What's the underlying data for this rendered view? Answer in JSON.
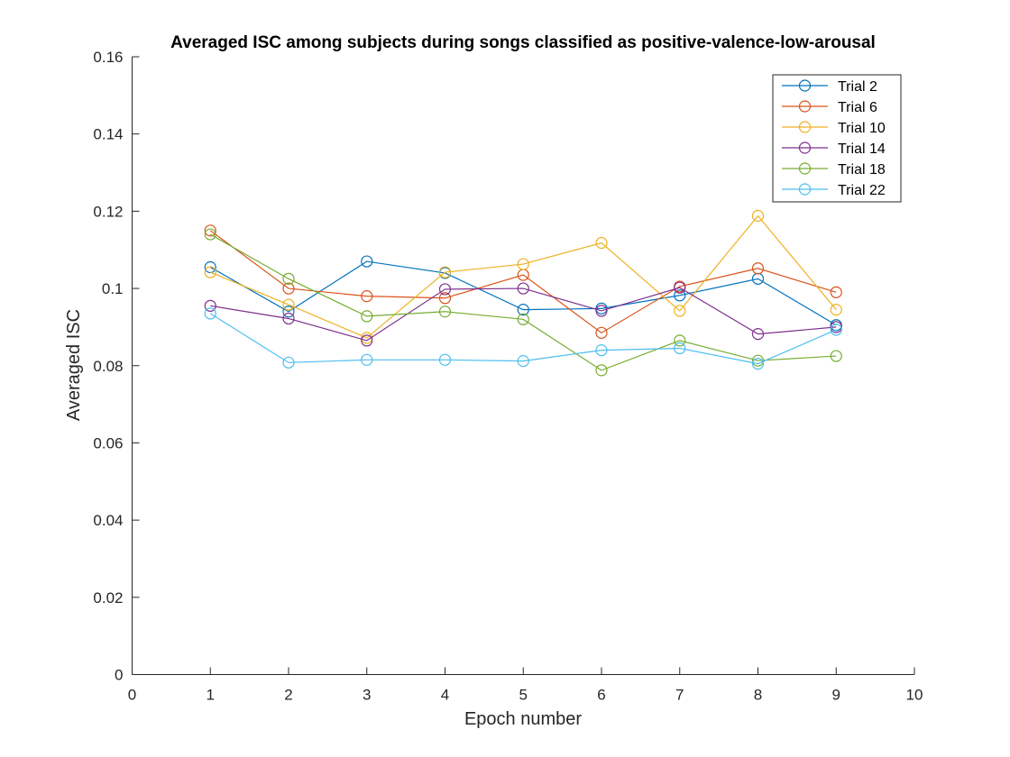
{
  "chart_data": {
    "type": "line",
    "title": "Averaged ISC among subjects during songs classified as positive-valence-low-arousal",
    "xlabel": "Epoch number",
    "ylabel": "Averaged ISC",
    "xlim": [
      0,
      10
    ],
    "ylim": [
      0,
      0.16
    ],
    "xticks": [
      "0",
      "1",
      "2",
      "3",
      "4",
      "5",
      "6",
      "7",
      "8",
      "9",
      "10"
    ],
    "yticks": [
      "0",
      "0.02",
      "0.04",
      "0.06",
      "0.08",
      "0.1",
      "0.12",
      "0.14",
      "0.16"
    ],
    "grid": false,
    "legend_position": "top-right",
    "marker": "circle",
    "x": [
      1,
      2,
      3,
      4,
      5,
      6,
      7,
      8,
      9
    ],
    "series": [
      {
        "name": "Trial 2",
        "color": "#0072BD",
        "values": [
          0.1055,
          0.094,
          0.107,
          0.104,
          0.0945,
          0.0948,
          0.0982,
          0.1025,
          0.0905
        ]
      },
      {
        "name": "Trial 6",
        "color": "#D95319",
        "values": [
          0.115,
          0.1,
          0.098,
          0.0975,
          0.1035,
          0.0885,
          0.1005,
          0.1052,
          0.099
        ]
      },
      {
        "name": "Trial 10",
        "color": "#EDB120",
        "values": [
          0.1042,
          0.0958,
          0.0872,
          0.1042,
          0.1063,
          0.1118,
          0.0942,
          0.1188,
          0.0945
        ]
      },
      {
        "name": "Trial 14",
        "color": "#7E2F8E",
        "values": [
          0.0955,
          0.0922,
          0.0865,
          0.0998,
          0.1,
          0.0942,
          0.1002,
          0.0882,
          0.09
        ]
      },
      {
        "name": "Trial 18",
        "color": "#77AC30",
        "values": [
          0.114,
          0.1025,
          0.0928,
          0.094,
          0.092,
          0.0788,
          0.0865,
          0.0813,
          0.0825
        ]
      },
      {
        "name": "Trial 22",
        "color": "#4DBEEE",
        "values": [
          0.0935,
          0.0808,
          0.0815,
          0.0815,
          0.0812,
          0.084,
          0.0845,
          0.0805,
          0.0893
        ]
      }
    ]
  }
}
